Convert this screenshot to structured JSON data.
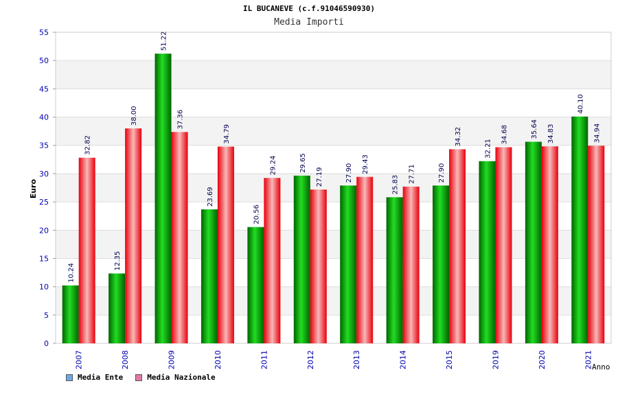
{
  "chart_data": {
    "type": "bar",
    "title": "IL BUCANEVE (c.f.91046590930)",
    "subtitle": "Media Importi",
    "xlabel": "Anno",
    "ylabel": "Euro",
    "ylim": [
      0,
      55
    ],
    "yticks": [
      0,
      5,
      10,
      15,
      20,
      25,
      30,
      35,
      40,
      45,
      50,
      55
    ],
    "categories": [
      "2007",
      "2008",
      "2009",
      "2010",
      "2011",
      "2012",
      "2013",
      "2014",
      "2015",
      "2019",
      "2020",
      "2021"
    ],
    "series": [
      {
        "name": "Media Ente",
        "values": [
          10.24,
          12.35,
          51.22,
          23.69,
          20.56,
          29.65,
          27.9,
          25.83,
          27.9,
          32.21,
          35.64,
          40.1
        ],
        "labels": [
          "10.24",
          "12.35",
          "51.22",
          "23.69",
          "20.56",
          "29.65",
          "27.90",
          "25.83",
          "27.90",
          "32.21",
          "35.64",
          "40.10"
        ],
        "legend_color": "#6aa9e9"
      },
      {
        "name": "Media Nazionale",
        "values": [
          32.82,
          38.0,
          37.36,
          34.79,
          29.24,
          27.19,
          29.43,
          27.71,
          34.32,
          34.68,
          34.83,
          34.94
        ],
        "labels": [
          "32.82",
          "38.00",
          "37.36",
          "34.79",
          "29.24",
          "27.19",
          "29.43",
          "27.71",
          "34.32",
          "34.68",
          "34.83",
          "34.94"
        ],
        "legend_color": "#e07aa8"
      }
    ],
    "colors": {
      "ente_dark": "#006400",
      "ente_light": "#22dd22",
      "naz_dark": "#e8000c",
      "naz_light": "#f7b8b8",
      "tick_label": "#0000b0",
      "band": "#f3f3f3",
      "grid": "#dddddd"
    }
  }
}
